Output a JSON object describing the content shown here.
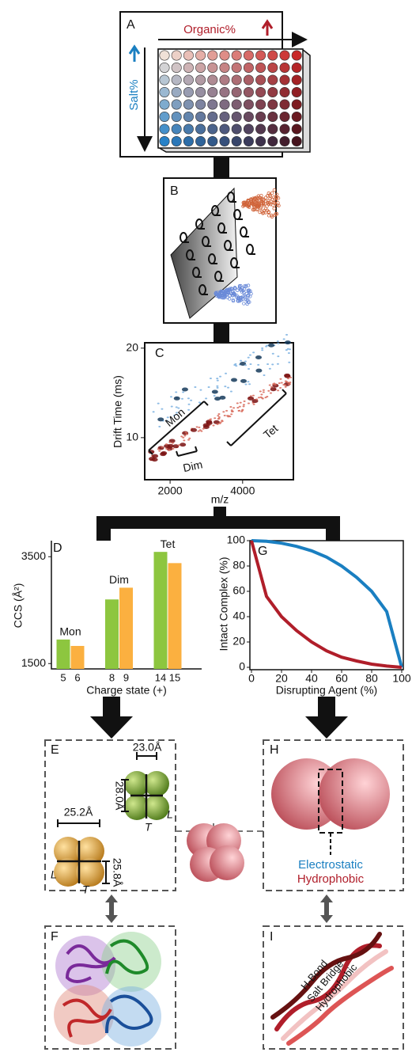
{
  "panels": {
    "A": {
      "label": "A",
      "organic": "Organic%",
      "salt": "Salt%"
    },
    "B": {
      "label": "B"
    },
    "C": {
      "label": "C",
      "y_label": "Drift Time (ms)",
      "x_label": "m/z",
      "xlim": [
        1300,
        5400
      ],
      "ylim": [
        5.3,
        20.6
      ],
      "xticks": [
        2000,
        4000
      ],
      "yticks": [
        10,
        20
      ],
      "annotations": [
        "Mon",
        "Dim",
        "Tet"
      ]
    },
    "E": {
      "label": "E",
      "width_orange": "25.2Å",
      "width_green": "23.0Å",
      "length_green": "28.0Å",
      "length_orange": "25.8Å",
      "long_orange": "L",
      "thin_orange": "T",
      "long_green": "L",
      "thin_green": "T"
    },
    "F": {
      "label": "F"
    },
    "H": {
      "label": "H",
      "legend": [
        "Electrostatic",
        "Hydrophobic"
      ],
      "legend_colors": [
        "#1a7fc1",
        "#b01e2a"
      ]
    },
    "I": {
      "label": "I",
      "annotations": [
        "H-Bond",
        "Salt Bridge",
        "Hydrophobic"
      ]
    }
  },
  "chart_data": [
    {
      "type": "bar",
      "label": "D",
      "y_label": "CCS (Å²)",
      "x_label": "Charge state (+)",
      "categories": [
        "5",
        "6",
        "8",
        "9",
        "14",
        "15"
      ],
      "values": [
        1950,
        1830,
        2700,
        2920,
        3590,
        3380
      ],
      "colors": [
        "#8dc63f",
        "#fbb040",
        "#8dc63f",
        "#fbb040",
        "#8dc63f",
        "#fbb040"
      ],
      "group_labels": [
        "Mon",
        "Dim",
        "Tet"
      ],
      "ylim": [
        1400,
        3800
      ],
      "yticks": [
        1500,
        3500
      ]
    },
    {
      "type": "line",
      "label": "G",
      "y_label": "Intact Complex (%)",
      "x_label": "Disrupting Agent (%)",
      "x": [
        0,
        10,
        20,
        30,
        40,
        50,
        60,
        70,
        80,
        90,
        100
      ],
      "series": [
        {
          "color": "#1a7fc1",
          "values": [
            100,
            99.5,
            98,
            95.5,
            92,
            87,
            80,
            71,
            60,
            44,
            0
          ]
        },
        {
          "color": "#b01e2a",
          "values": [
            100,
            56,
            40,
            29,
            20,
            13,
            8,
            5,
            2.5,
            1,
            0
          ]
        }
      ],
      "xlim": [
        0,
        100
      ],
      "ylim": [
        0,
        100
      ],
      "xticks": [
        0,
        20,
        40,
        60,
        80,
        100
      ],
      "yticks": [
        0,
        20,
        40,
        60,
        80,
        100
      ]
    }
  ]
}
